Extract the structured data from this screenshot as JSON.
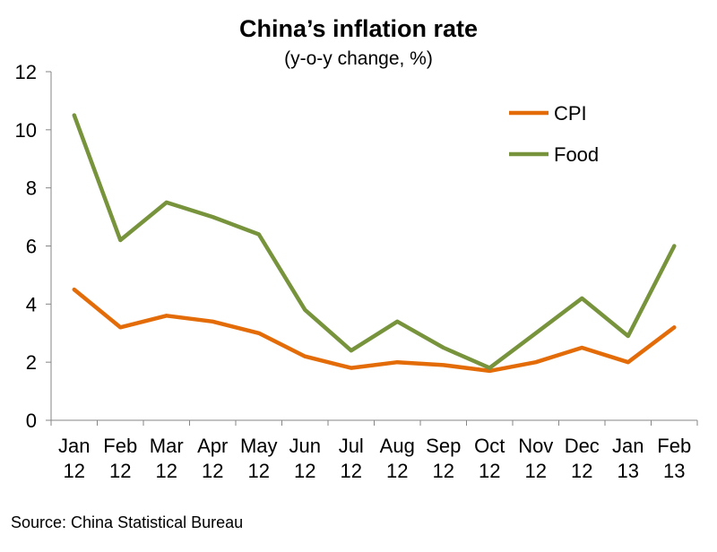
{
  "chart_data": {
    "type": "line",
    "title": "China’s inflation rate",
    "subtitle": "(y-o-y change, %)",
    "categories": [
      [
        "Jan",
        "12"
      ],
      [
        "Feb",
        "12"
      ],
      [
        "Mar",
        "12"
      ],
      [
        "Apr",
        "12"
      ],
      [
        "May",
        "12"
      ],
      [
        "Jun",
        "12"
      ],
      [
        "Jul",
        "12"
      ],
      [
        "Aug",
        "12"
      ],
      [
        "Sep",
        "12"
      ],
      [
        "Oct",
        "12"
      ],
      [
        "Nov",
        "12"
      ],
      [
        "Dec",
        "12"
      ],
      [
        "Jan",
        "13"
      ],
      [
        "Feb",
        "13"
      ]
    ],
    "series": [
      {
        "name": "CPI",
        "color": "#E36C09",
        "values": [
          4.5,
          3.2,
          3.6,
          3.4,
          3.0,
          2.2,
          1.8,
          2.0,
          1.9,
          1.7,
          2.0,
          2.5,
          2.0,
          3.2
        ]
      },
      {
        "name": "Food",
        "color": "#77933C",
        "values": [
          10.5,
          6.2,
          7.5,
          7.0,
          6.4,
          3.8,
          2.4,
          3.4,
          2.5,
          1.8,
          3.0,
          4.2,
          2.9,
          6.0
        ]
      }
    ],
    "ylim": [
      0,
      12
    ],
    "yticks": [
      0,
      2,
      4,
      6,
      8,
      10,
      12
    ],
    "grid": false,
    "legend": "top-right",
    "source": "Source: China Statistical Bureau"
  }
}
